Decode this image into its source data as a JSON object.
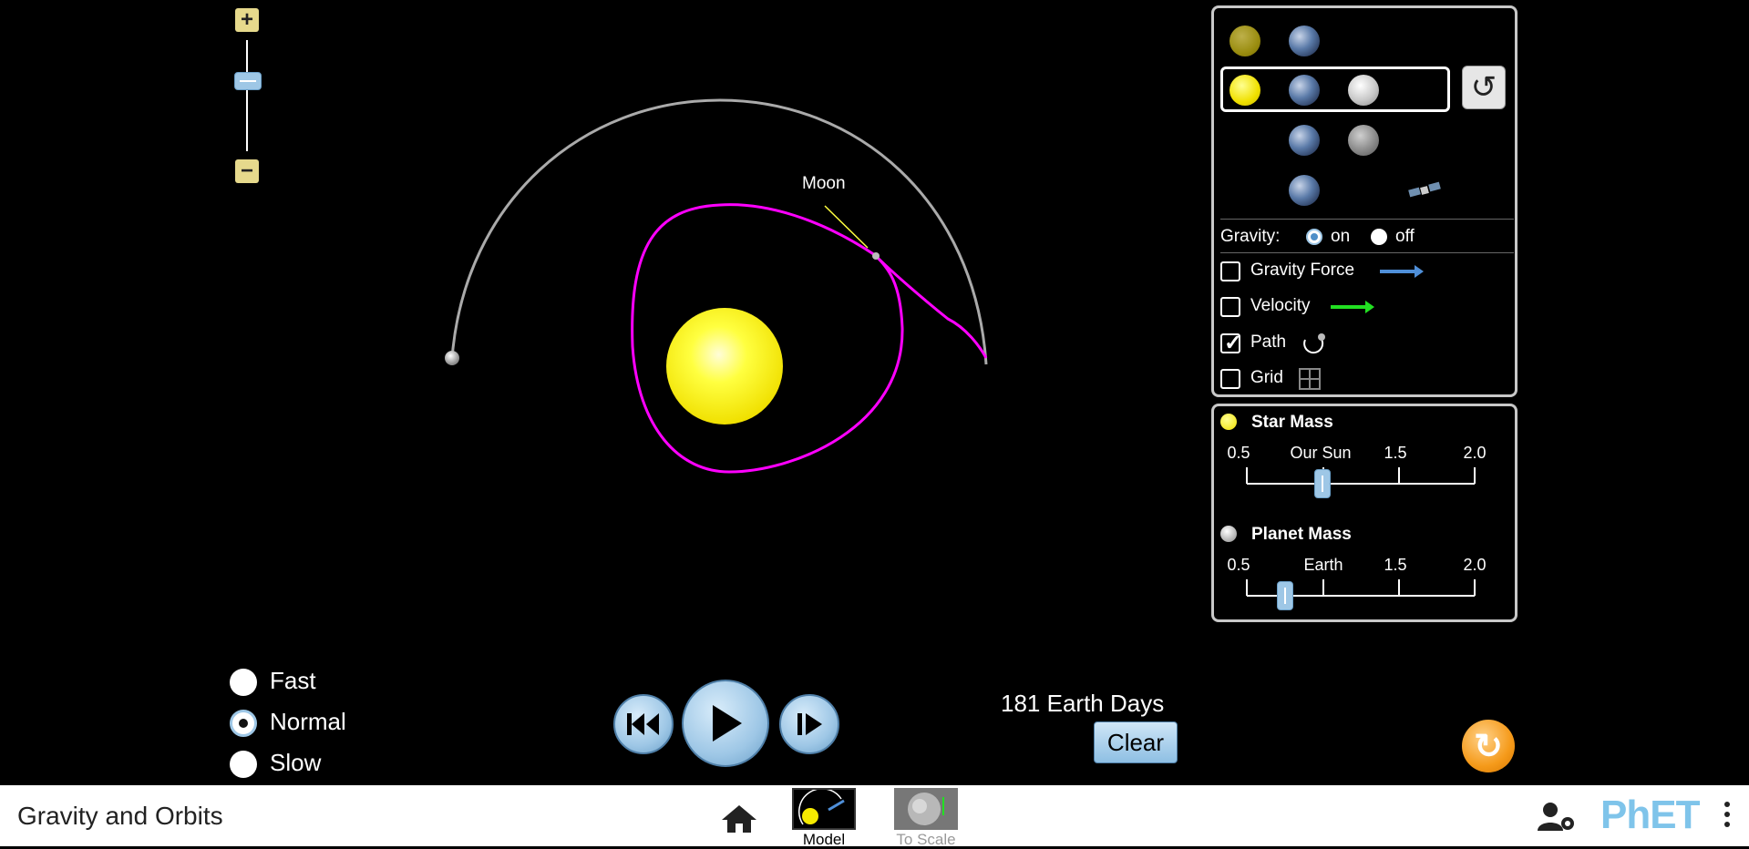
{
  "scene": {
    "moon_label": "Moon"
  },
  "zoom": {
    "plus": "+",
    "minus": "−"
  },
  "bodies_panel": {
    "gravity_label": "Gravity:",
    "gravity_on": "on",
    "gravity_off": "off",
    "gravity_value": "on",
    "gravity_force_label": "Gravity Force",
    "gravity_force_checked": false,
    "velocity_label": "Velocity",
    "velocity_checked": false,
    "path_label": "Path",
    "path_checked": true,
    "grid_label": "Grid",
    "grid_checked": false
  },
  "mass_panel": {
    "star_mass": {
      "title": "Star Mass",
      "ticks": [
        "0.5",
        "Our Sun",
        "1.5",
        "2.0"
      ],
      "value": 1.0,
      "range": [
        0.5,
        2.0
      ]
    },
    "planet_mass": {
      "title": "Planet Mass",
      "ticks": [
        "0.5",
        "Earth",
        "1.5",
        "2.0"
      ],
      "value": 0.75,
      "range": [
        0.5,
        2.0
      ]
    }
  },
  "speed": {
    "options": [
      "Fast",
      "Normal",
      "Slow"
    ],
    "selected": "Normal"
  },
  "time": {
    "elapsed": "181 Earth Days",
    "clear_label": "Clear"
  },
  "navbar": {
    "title": "Gravity and Orbits",
    "screens": [
      "Model",
      "To Scale"
    ],
    "active_screen": "Model",
    "logo": "PhET"
  },
  "colors": {
    "path": "#ff00ff",
    "star": "#f5ea00",
    "gravity_arrow": "#4f8fd8",
    "velocity_arrow": "#22e022",
    "panel_border": "#c8c8c8",
    "accent": "#9ec7e6"
  },
  "icons": [
    "zoom-in-icon",
    "zoom-out-icon",
    "reset-system-icon",
    "satellite-icon",
    "path-icon",
    "grid-icon",
    "rewind-icon",
    "play-icon",
    "step-icon",
    "reset-all-icon",
    "home-icon",
    "user-settings-icon",
    "kebab-menu-icon"
  ]
}
